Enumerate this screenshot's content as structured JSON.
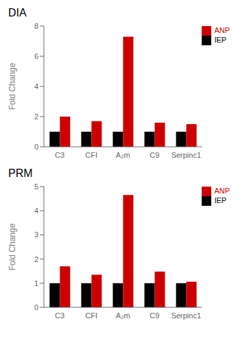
{
  "chart_data": [
    {
      "type": "bar",
      "title": "DIA",
      "categories": [
        "C3",
        "CFI",
        "A₂m",
        "C9",
        "Serpinc1"
      ],
      "series": [
        {
          "name": "IEP",
          "color": "#000000",
          "values": [
            1.0,
            1.0,
            1.0,
            1.0,
            1.0
          ]
        },
        {
          "name": "ANP",
          "color": "#cc0000",
          "values": [
            2.0,
            1.7,
            7.3,
            1.6,
            1.5
          ]
        }
      ],
      "ylabel": "Fold Change",
      "ylim": [
        0,
        8
      ],
      "yticks": [
        0,
        2,
        4,
        6,
        8
      ],
      "legend": "upper right"
    },
    {
      "type": "bar",
      "title": "PRM",
      "categories": [
        "C3",
        "CFI",
        "A₂m",
        "C9",
        "Serpinc1"
      ],
      "series": [
        {
          "name": "IEP",
          "color": "#000000",
          "values": [
            1.0,
            1.0,
            1.0,
            1.0,
            1.0
          ]
        },
        {
          "name": "ANP",
          "color": "#cc0000",
          "values": [
            1.7,
            1.35,
            4.65,
            1.48,
            1.06
          ]
        }
      ],
      "ylabel": "Fold Change",
      "ylim": [
        0,
        5
      ],
      "yticks": [
        0,
        1,
        2,
        3,
        4,
        5
      ],
      "legend": "upper right"
    }
  ]
}
